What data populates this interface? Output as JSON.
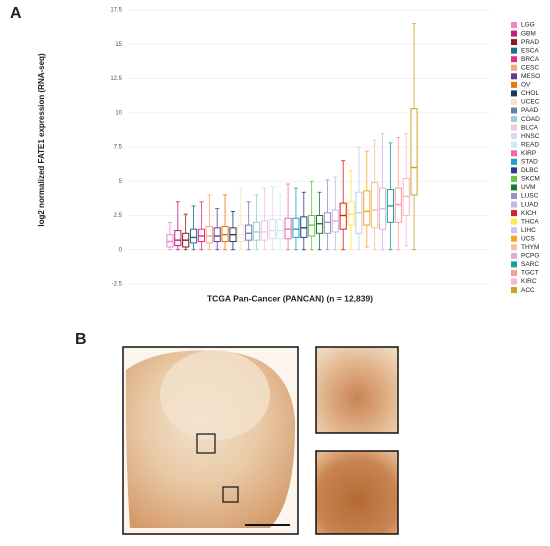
{
  "chart_data": {
    "type": "box",
    "panel_a": "A",
    "panel_b": "B",
    "y_label": "log2 normalized FATE1 expression (RNA-seq)",
    "x_label": "TCGA Pan-Cancer (PANCAN) (n = 12,839)",
    "categories": [
      "LGG",
      "GBM",
      "PRAD",
      "ESCA",
      "BRCA",
      "CESC",
      "MESO",
      "OV",
      "CHOL",
      "UCEC",
      "PAAD",
      "COAD",
      "BLCA",
      "HNSC",
      "READ",
      "KIRP",
      "STAD",
      "DLBC",
      "SKCM",
      "UVM",
      "LUSC",
      "LUAD",
      "KICH",
      "THCA",
      "LIHC",
      "UCS",
      "THYM",
      "PCPG",
      "SARC",
      "TGCT",
      "KIRC",
      "ACC"
    ],
    "colors": [
      "#e78ac3",
      "#c51b7d",
      "#8b1a1a",
      "#1f6f8b",
      "#e7298a",
      "#f4a582",
      "#5e3c99",
      "#e6750a",
      "#1a3a5c",
      "#fde0c5",
      "#6a7fa8",
      "#9ecae1",
      "#f9c5d5",
      "#d9d9f3",
      "#cfeaf3",
      "#f768a1",
      "#1fa2c9",
      "#2b3a8c",
      "#66c24a",
      "#1b7837",
      "#9e8fc6",
      "#c7b8e0",
      "#e31a1c",
      "#ffe84d",
      "#c8c8e8",
      "#f5a623",
      "#f4c29a",
      "#d9b3e0",
      "#1aa39a",
      "#fb9a99",
      "#f6b8c8",
      "#c9a227"
    ],
    "low": [
      0,
      0,
      0,
      0,
      0,
      0,
      0,
      0,
      0,
      0,
      0,
      0,
      0,
      0,
      0,
      0,
      0,
      0,
      0,
      0,
      0,
      0,
      0,
      0,
      0,
      0.2,
      0,
      0,
      0,
      0,
      0.3,
      0
    ],
    "q1": [
      0.2,
      0.3,
      0.2,
      0.5,
      0.6,
      0.5,
      0.6,
      0.6,
      0.6,
      0.6,
      0.7,
      0.7,
      0.7,
      0.8,
      0.8,
      0.8,
      0.9,
      0.9,
      1.0,
      1.2,
      1.2,
      1.3,
      1.5,
      1.8,
      1.2,
      1.8,
      1.6,
      1.5,
      2.0,
      2.0,
      2.5,
      4.0
    ],
    "median": [
      0.6,
      0.7,
      0.7,
      0.9,
      1.0,
      1.0,
      1.0,
      1.1,
      1.1,
      1.1,
      1.2,
      1.3,
      1.3,
      1.4,
      1.4,
      1.5,
      1.5,
      1.6,
      1.8,
      1.9,
      2.0,
      2.1,
      2.5,
      2.6,
      2.7,
      2.8,
      2.9,
      3.0,
      3.2,
      3.3,
      3.9,
      6.0
    ],
    "q3": [
      1.1,
      1.4,
      1.2,
      1.5,
      1.5,
      1.7,
      1.6,
      1.7,
      1.6,
      1.8,
      1.8,
      2.0,
      2.1,
      2.2,
      2.2,
      2.3,
      2.3,
      2.4,
      2.5,
      2.5,
      2.7,
      2.9,
      3.4,
      3.5,
      4.2,
      4.3,
      4.9,
      4.5,
      4.4,
      4.5,
      5.2,
      10.3
    ],
    "high": [
      2.0,
      3.5,
      2.6,
      3.2,
      3.5,
      4.0,
      3.0,
      4.0,
      2.8,
      4.5,
      3.5,
      4.0,
      4.5,
      4.6,
      4.0,
      4.8,
      4.5,
      4.2,
      5.0,
      4.2,
      5.1,
      5.3,
      6.5,
      5.8,
      7.5,
      7.2,
      8.0,
      8.5,
      7.8,
      8.2,
      8.5,
      16.5
    ],
    "ylim": [
      -2.5,
      17.5
    ],
    "yticks": [
      -2.5,
      0,
      2.5,
      5,
      7.5,
      10,
      12.5,
      15,
      17.5
    ],
    "grid": true
  }
}
